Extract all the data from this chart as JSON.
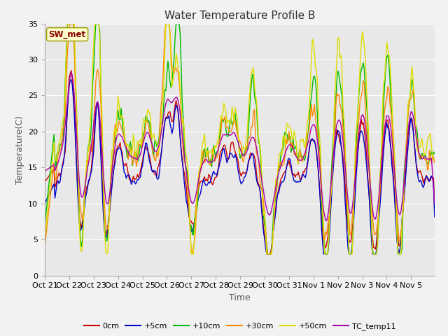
{
  "title": "Water Temperature Profile B",
  "xlabel": "Time",
  "ylabel": "Temperature(C)",
  "ylim": [
    0,
    35
  ],
  "yticks": [
    0,
    5,
    10,
    15,
    20,
    25,
    30,
    35
  ],
  "background_color": "#f2f2f2",
  "plot_bg_color": "#e8e8e8",
  "series_colors": {
    "0cm": "#cc0000",
    "+5cm": "#0000cc",
    "+10cm": "#00bb00",
    "+30cm": "#ff8800",
    "+50cm": "#dddd00",
    "TC_temp11": "#aa00aa"
  },
  "sw_met_label": "SW_met",
  "sw_met_color": "#880000",
  "sw_met_bg": "#ffffcc",
  "tick_labels": [
    "Oct 21",
    "Oct 22",
    "Oct 23",
    "Oct 24",
    "Oct 25",
    "Oct 26",
    "Oct 27",
    "Oct 28",
    "Oct 29",
    "Oct 30",
    "Oct 31",
    "Nov 1",
    "Nov 2",
    "Nov 3",
    "Nov 4",
    "Nov 5"
  ],
  "legend_entries": [
    "0cm",
    "+5cm",
    "+10cm",
    "+30cm",
    "+50cm",
    "TC_temp11"
  ],
  "grid_color": "#cccccc",
  "white_bg": "#ffffff"
}
